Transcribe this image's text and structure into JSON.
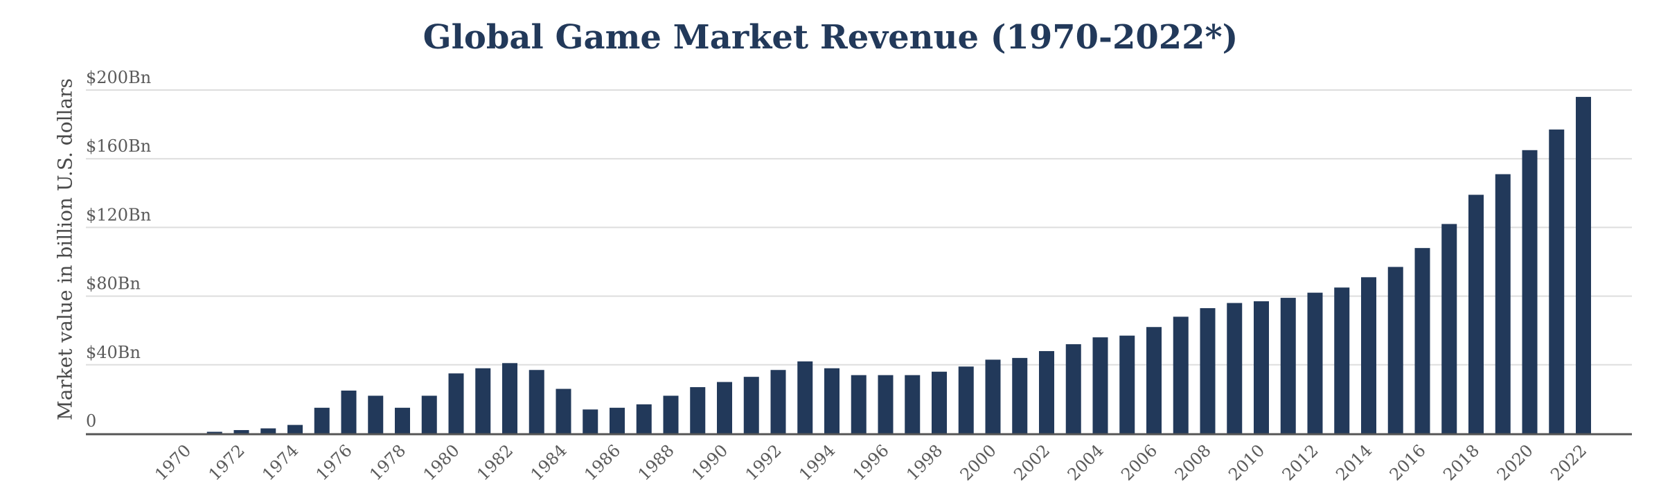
{
  "chart_data": {
    "type": "bar",
    "title": "Global Game Market Revenue (1970-2022*)",
    "ylabel": "Market value in billion U.S. dollars",
    "xlabel": "",
    "ylim": [
      0,
      200
    ],
    "y_ticks": [
      {
        "value": 0,
        "label": "0"
      },
      {
        "value": 40,
        "label": "$40Bn"
      },
      {
        "value": 80,
        "label": "$80Bn"
      },
      {
        "value": 120,
        "label": "$120Bn"
      },
      {
        "value": 160,
        "label": "$160Bn"
      },
      {
        "value": 200,
        "label": "$200Bn"
      }
    ],
    "x_tick_labels": [
      "1970",
      "1972",
      "1974",
      "1976",
      "1978",
      "1980",
      "1982",
      "1984",
      "1986",
      "1988",
      "1990",
      "1992",
      "1994",
      "1996",
      "1998",
      "2000",
      "2002",
      "2004",
      "2006",
      "2008",
      "2010",
      "2012",
      "2014",
      "2016",
      "2018",
      "2020",
      "2022"
    ],
    "categories": [
      "1970",
      "1971",
      "1972",
      "1973",
      "1974",
      "1975",
      "1976",
      "1977",
      "1978",
      "1979",
      "1980",
      "1981",
      "1982",
      "1983",
      "1984",
      "1985",
      "1986",
      "1987",
      "1988",
      "1989",
      "1990",
      "1991",
      "1992",
      "1993",
      "1994",
      "1995",
      "1996",
      "1997",
      "1998",
      "1999",
      "2000",
      "2001",
      "2002",
      "2003",
      "2004",
      "2005",
      "2006",
      "2007",
      "2008",
      "2009",
      "2010",
      "2011",
      "2012",
      "2013",
      "2014",
      "2015",
      "2016",
      "2017",
      "2018",
      "2019",
      "2020",
      "2021",
      "2022"
    ],
    "values": [
      0,
      1,
      2,
      3,
      5,
      15,
      25,
      22,
      15,
      22,
      35,
      38,
      41,
      37,
      26,
      14,
      15,
      17,
      22,
      27,
      30,
      33,
      37,
      42,
      38,
      34,
      34,
      34,
      36,
      39,
      43,
      44,
      48,
      52,
      56,
      57,
      62,
      68,
      73,
      76,
      77,
      79,
      82,
      85,
      91,
      97,
      108,
      122,
      139,
      151,
      165,
      177,
      196
    ],
    "grid": true,
    "legend": "none",
    "colors": {
      "bar": "#22395a",
      "grid": "#dddddd",
      "axis": "#555555",
      "title": "#22395a"
    }
  }
}
